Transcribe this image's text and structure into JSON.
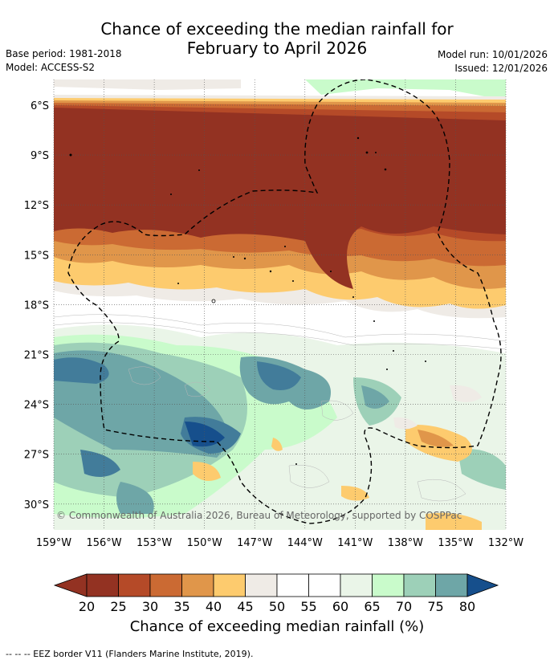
{
  "title_line1": "Chance of exceeding the median rainfall for",
  "title_line2": "February to April 2026",
  "base_period": "Base period: 1981-2018",
  "model": "Model: ACCESS-S2",
  "model_run": "Model run: 10/01/2026",
  "issued": "Issued: 12/01/2026",
  "copyright": "© Commonwealth of Australia 2026, Bureau of Meteorology, supported by COSPPac",
  "lat_ticks": [
    "6°S",
    "9°S",
    "12°S",
    "15°S",
    "18°S",
    "21°S",
    "24°S",
    "27°S",
    "30°S"
  ],
  "lon_ticks": [
    "159°W",
    "156°W",
    "153°W",
    "150°W",
    "147°W",
    "144°W",
    "141°W",
    "138°W",
    "135°W",
    "132°W"
  ],
  "colorbar": {
    "labels": [
      "20",
      "25",
      "30",
      "35",
      "40",
      "45",
      "50",
      "55",
      "60",
      "65",
      "70",
      "75",
      "80"
    ],
    "colors": [
      "#933222",
      "#b54a28",
      "#cb6a33",
      "#e0964a",
      "#fdcb6e",
      "#efebe6",
      "#ffffff",
      "#ffffff",
      "#eaf5e8",
      "#c9fbcb",
      "#9dd0b8",
      "#6ea6a7",
      "#427c9a"
    ],
    "low_color": "#933222",
    "high_color": "#164f8c",
    "title": "Chance of exceeding median rainfall (%)"
  },
  "footnote": "--  --  -- EEZ border V11 (Flanders Marine Institute, 2019)."
}
